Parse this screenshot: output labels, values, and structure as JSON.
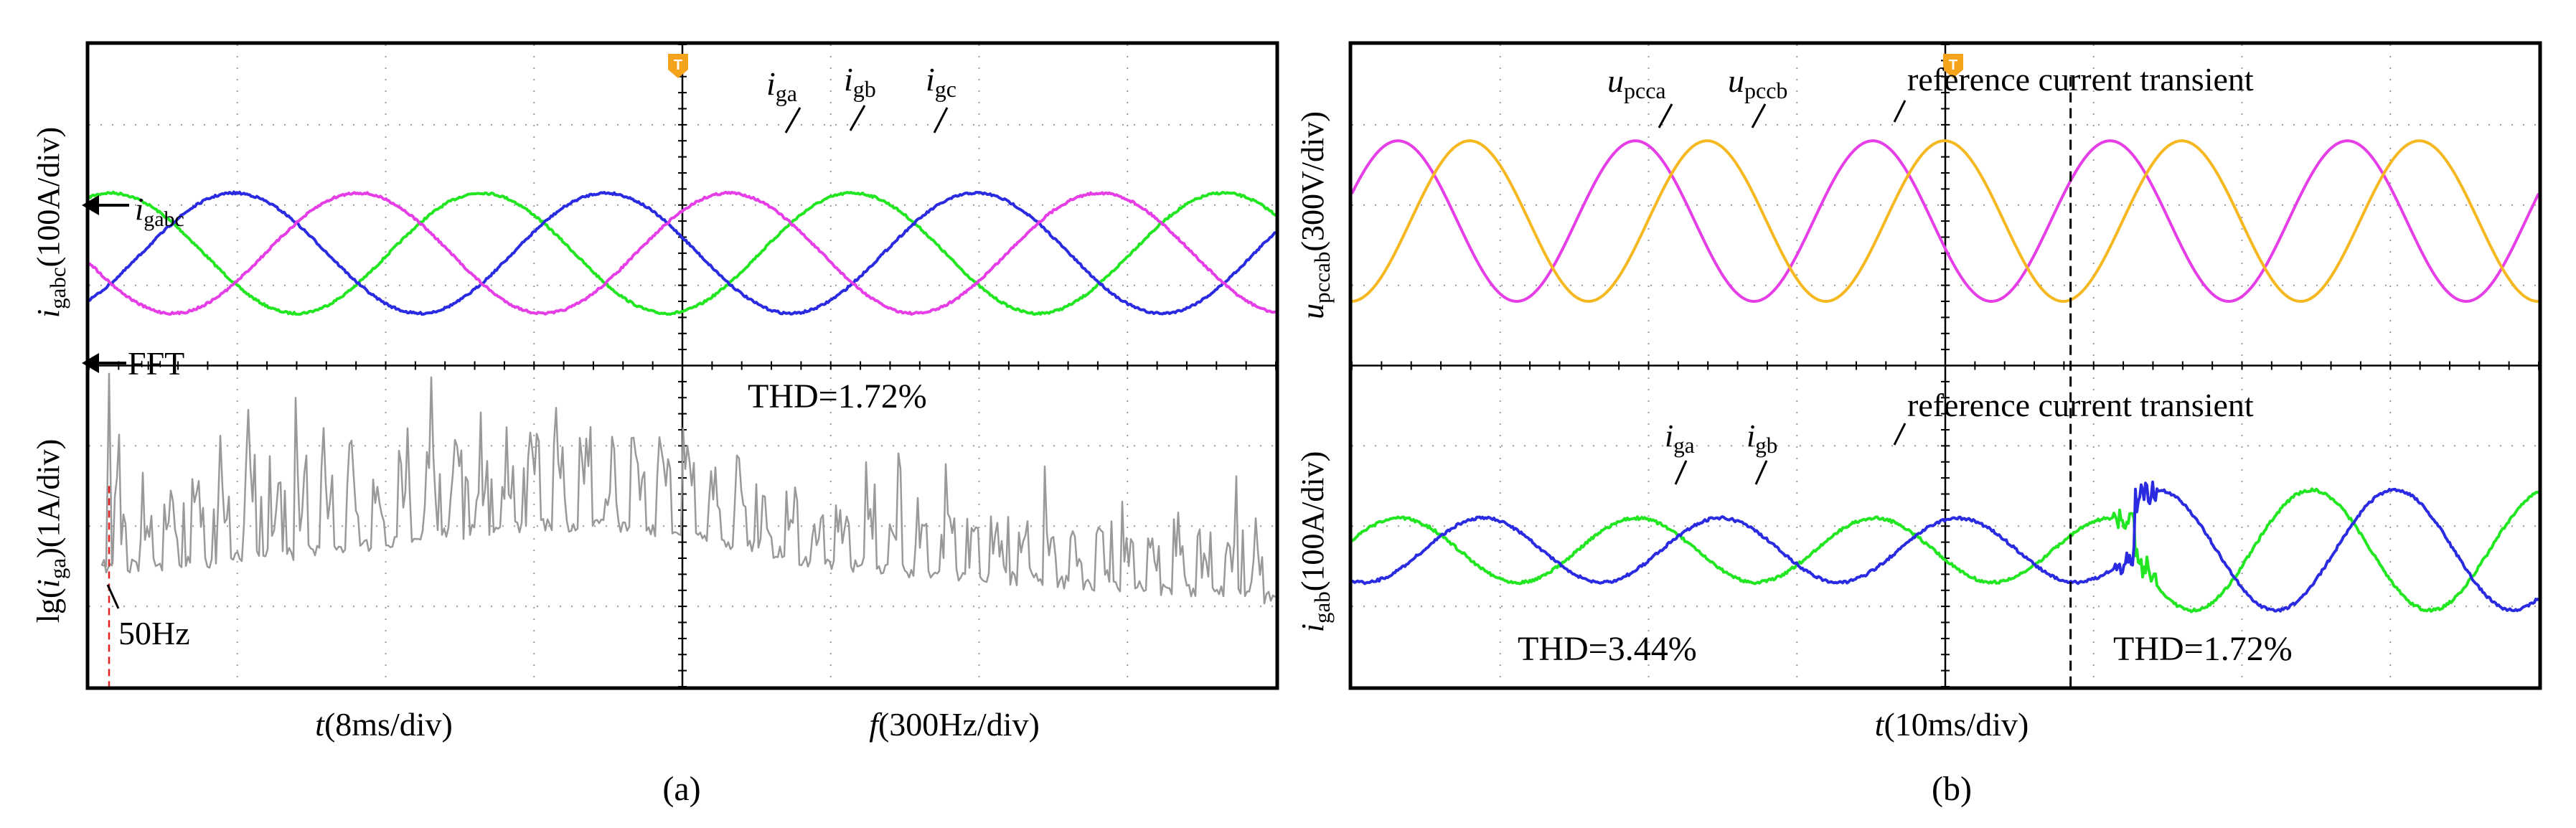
{
  "chart_data": [
    {
      "type": "line",
      "panel_label": "(a)",
      "upper": {
        "ylabel_main": "i",
        "ylabel_sub": "gabc",
        "ylabel_unit": "(100A/div)",
        "channel_marker": {
          "main": "i",
          "sub": "gabc"
        },
        "time_per_div_ms": 8,
        "series": [
          {
            "name": "iga",
            "label_main": "i",
            "label_sub": "ga",
            "color": "#22e622",
            "amplitude_div": 0.75,
            "freq_hz": 50,
            "phase_deg": 0
          },
          {
            "name": "igb",
            "label_main": "i",
            "label_sub": "gb",
            "color": "#2a2ae0",
            "amplitude_div": 0.75,
            "freq_hz": 50,
            "phase_deg": -120
          },
          {
            "name": "igc",
            "label_main": "i",
            "label_sub": "gc",
            "color": "#e63ee6",
            "amplitude_div": 0.75,
            "freq_hz": 50,
            "phase_deg": 120
          }
        ]
      },
      "lower": {
        "ylabel_pre": "lg(",
        "ylabel_main": "i",
        "ylabel_sub": "ga",
        "ylabel_post": ")(1A/div)",
        "channel_marker": "FFT",
        "fundamental_label": "50Hz",
        "thd_label": "THD=1.72%",
        "freq_per_div_hz": 300,
        "spectrum_color": "#999999"
      },
      "xlabel_left": {
        "var": "t",
        "unit": "(8ms/div)"
      },
      "xlabel_right": {
        "var": "f",
        "unit": "(300Hz/div)"
      },
      "trigger_marker": "T"
    },
    {
      "type": "line",
      "panel_label": "(b)",
      "upper": {
        "ylabel_main": "u",
        "ylabel_sub": "pccab",
        "ylabel_unit": "(300V/div)",
        "annotation": "reference current transient",
        "series": [
          {
            "name": "upcca",
            "label_main": "u",
            "label_sub": "pcca",
            "color": "#e63ee6",
            "amplitude_div": 1.0,
            "freq_hz": 50
          },
          {
            "name": "upccb",
            "label_main": "u",
            "label_sub": "pccb",
            "color": "#f5b820",
            "amplitude_div": 1.0,
            "freq_hz": 50
          }
        ]
      },
      "lower": {
        "ylabel_main": "i",
        "ylabel_sub": "gab",
        "ylabel_unit": "(100A/div)",
        "annotation": "reference current transient",
        "thd_before": "THD=3.44%",
        "thd_after": "THD=1.72%",
        "series": [
          {
            "name": "iga",
            "label_main": "i",
            "label_sub": "ga",
            "color": "#22e622",
            "amplitude_before_div": 0.4,
            "amplitude_after_div": 0.75
          },
          {
            "name": "igb",
            "label_main": "i",
            "label_sub": "gb",
            "color": "#2a2ae0",
            "amplitude_before_div": 0.4,
            "amplitude_after_div": 0.75
          }
        ]
      },
      "xlabel": {
        "var": "t",
        "unit": "(10ms/div)"
      },
      "time_per_div_ms": 10,
      "transient_time_ms": 66,
      "trigger_marker": "T"
    }
  ]
}
